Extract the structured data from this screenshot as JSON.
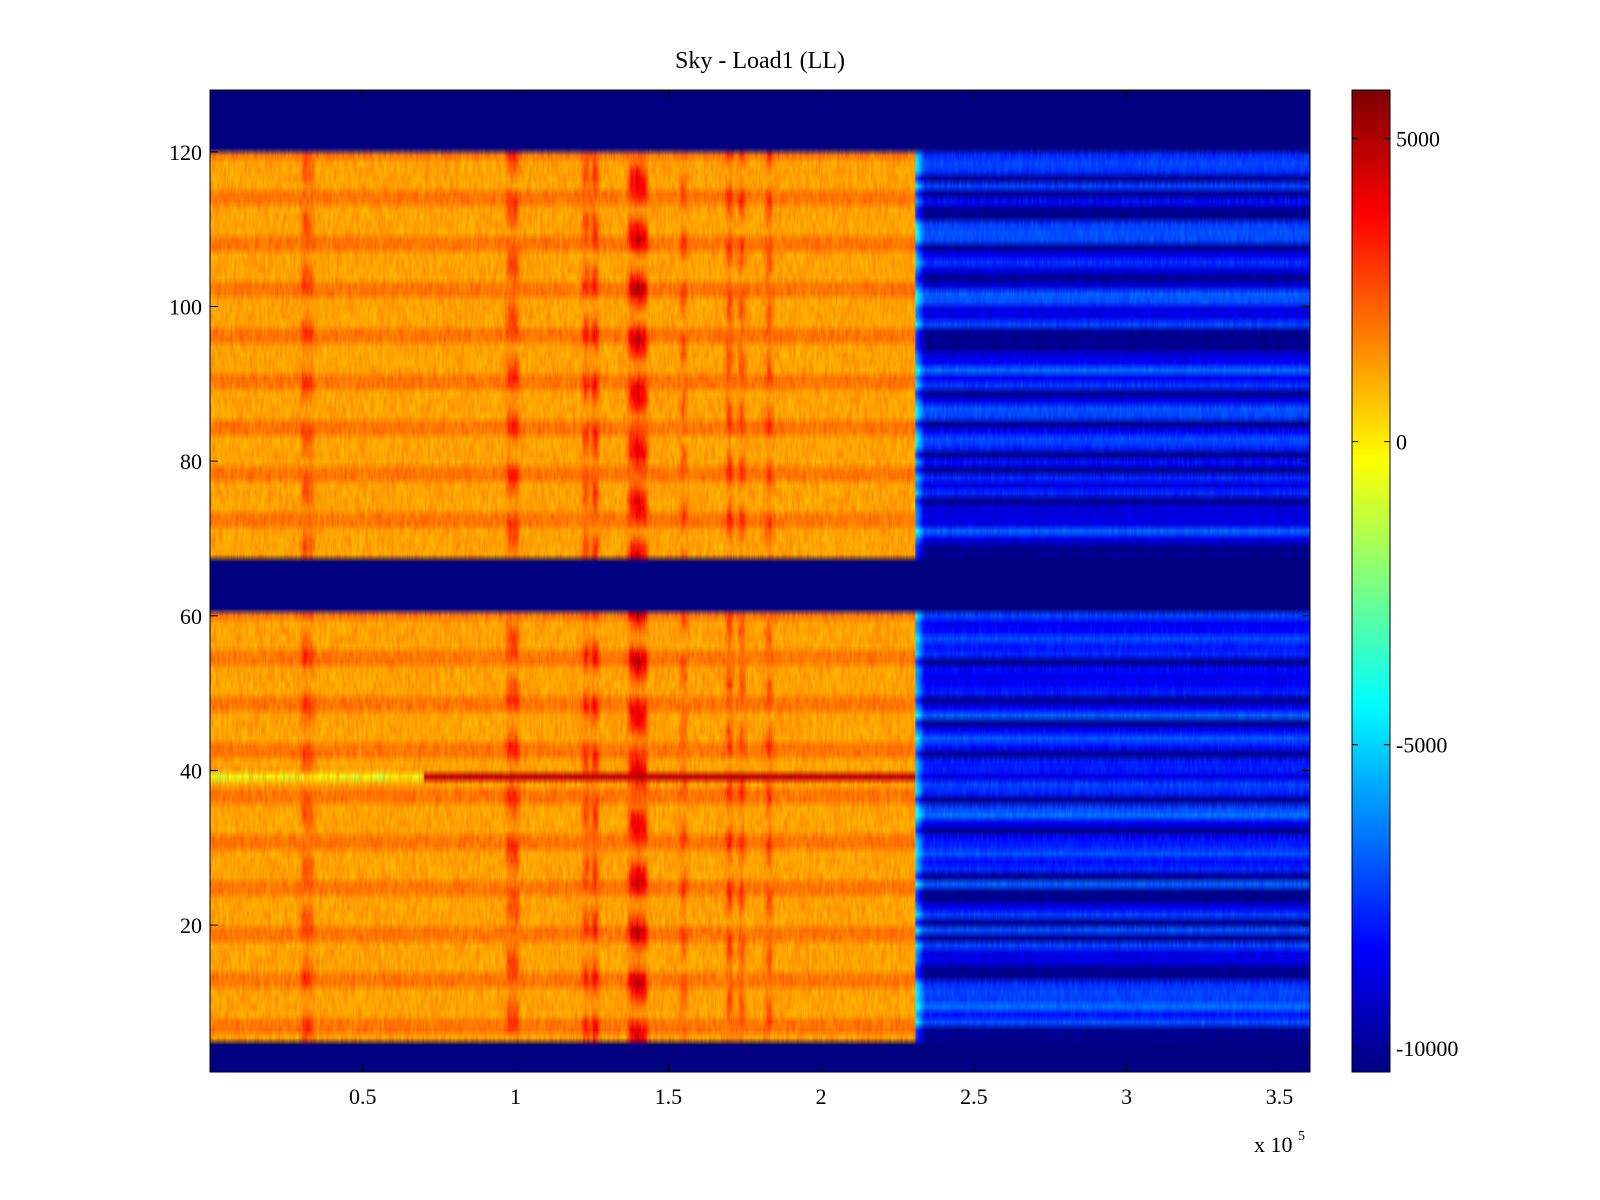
{
  "chart_data": {
    "type": "heatmap",
    "title": "Sky - Load1 (LL)",
    "xlabel": "",
    "ylabel": "",
    "x_multiplier_label": "x 10",
    "x_multiplier_exponent": "5",
    "xlim": [
      0,
      3.6
    ],
    "ylim": [
      1,
      128
    ],
    "xticks": [
      {
        "value": 0.5,
        "label": "0.5"
      },
      {
        "value": 1,
        "label": "1"
      },
      {
        "value": 1.5,
        "label": "1.5"
      },
      {
        "value": 2,
        "label": "2"
      },
      {
        "value": 2.5,
        "label": "2.5"
      },
      {
        "value": 3,
        "label": "3"
      },
      {
        "value": 3.5,
        "label": "3.5"
      }
    ],
    "yticks": [
      {
        "value": 20,
        "label": "20"
      },
      {
        "value": 40,
        "label": "40"
      },
      {
        "value": 60,
        "label": "60"
      },
      {
        "value": 80,
        "label": "80"
      },
      {
        "value": 100,
        "label": "100"
      },
      {
        "value": 120,
        "label": "120"
      }
    ],
    "colormap": "jet",
    "clim": [
      -10400,
      5800
    ],
    "colorbar_ticks": [
      {
        "value": 5000,
        "label": "5000"
      },
      {
        "value": 0,
        "label": "0"
      },
      {
        "value": -5000,
        "label": "-5000"
      },
      {
        "value": -10000,
        "label": "-10000"
      }
    ],
    "transition_x": 2.31,
    "masked_channel_bands": [
      [
        1,
        4
      ],
      [
        61,
        67
      ],
      [
        121,
        128
      ]
    ],
    "left_region_base_value": 1200,
    "right_region_base_value": -8500,
    "saturated_value": -10400,
    "hot_columns": [
      {
        "x": 0.31,
        "value": 2600
      },
      {
        "x": 0.33,
        "value": 2200
      },
      {
        "x": 0.98,
        "value": 2600
      },
      {
        "x": 1.0,
        "value": 2800
      },
      {
        "x": 1.23,
        "value": 2800
      },
      {
        "x": 1.26,
        "value": 3200
      },
      {
        "x": 1.38,
        "value": 3600
      },
      {
        "x": 1.4,
        "value": 4200
      },
      {
        "x": 1.42,
        "value": 3600
      },
      {
        "x": 1.55,
        "value": 2400
      },
      {
        "x": 1.7,
        "value": 2800
      },
      {
        "x": 1.74,
        "value": 2600
      },
      {
        "x": 1.83,
        "value": 2600
      }
    ],
    "hot_row": {
      "channel": 39,
      "x_start": 0.7,
      "x_end": 2.31,
      "value": 4800
    }
  }
}
